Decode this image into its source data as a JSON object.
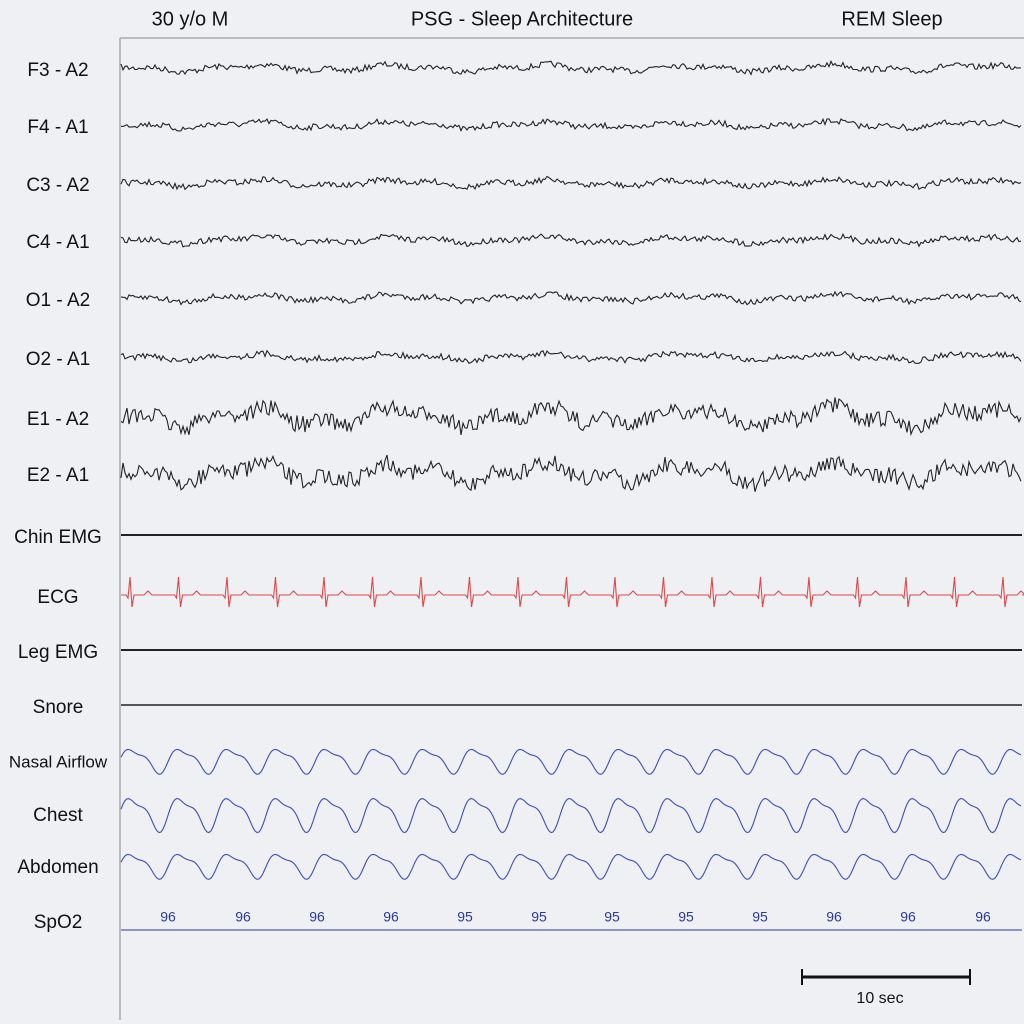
{
  "header": {
    "patient": "30 y/o M",
    "title": "PSG - Sleep Architecture",
    "stage": "REM Sleep"
  },
  "channels": [
    "F3 - A2",
    "F4 - A1",
    "C3 - A2",
    "C4 - A1",
    "O1 - A2",
    "O2 - A1",
    "E1 - A2",
    "E2 - A1",
    "Chin EMG",
    "ECG",
    "Leg EMG",
    "Snore",
    "Nasal Airflow",
    "Chest",
    "Abdomen",
    "SpO2"
  ],
  "spo2_values": [
    96,
    96,
    96,
    96,
    95,
    95,
    95,
    95,
    95,
    96,
    96,
    96
  ],
  "scale_bar": {
    "label": "10 sec"
  }
}
